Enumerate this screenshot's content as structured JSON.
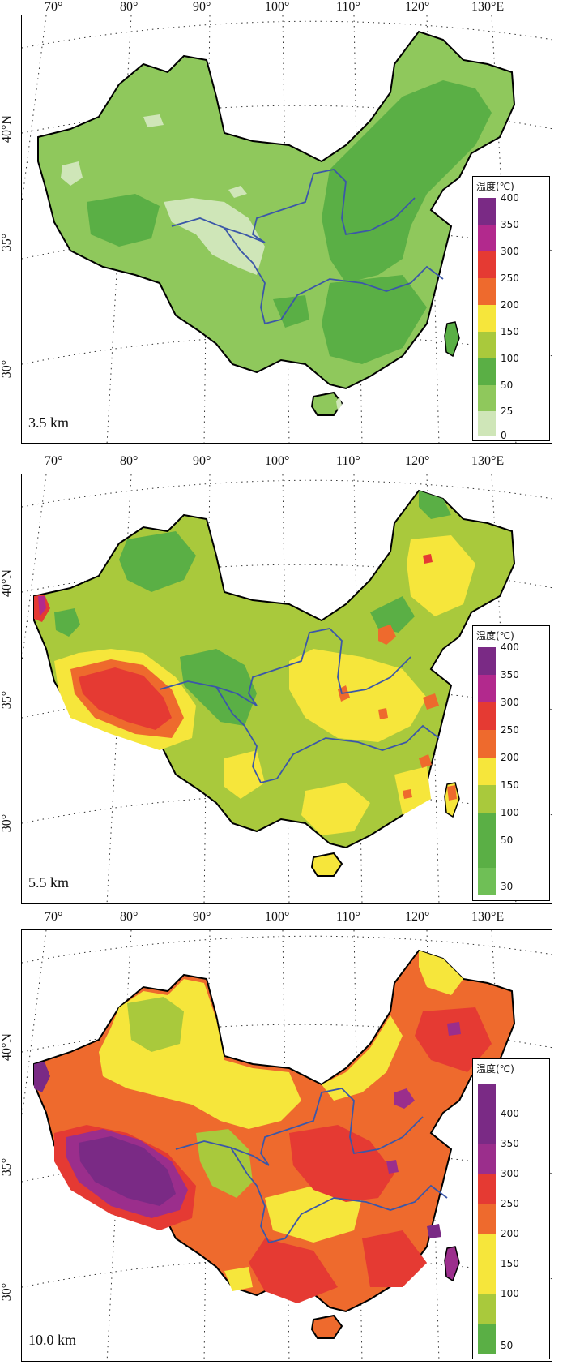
{
  "lon_labels": [
    "70°",
    "80°",
    "90°",
    "100°",
    "110°",
    "120°",
    "130°E"
  ],
  "lat_labels": [
    "40°N",
    "35°",
    "30°"
  ],
  "legend_title": "温度(℃)",
  "colors": {
    "c0": "#cfe6b8",
    "c25": "#8fc85c",
    "c50": "#5aaf45",
    "c100": "#a9c93c",
    "c150": "#f6e63b",
    "c200": "#ee6a2d",
    "c250": "#e53a33",
    "c300": "#b2298d",
    "c350": "#9b2e8c",
    "c400": "#7a2a85",
    "river": "#3b57a8",
    "border": "#000000"
  },
  "panels": [
    {
      "depth": "3.5 km",
      "legend_ticks": [
        "400",
        "350",
        "300",
        "250",
        "200",
        "150",
        "100",
        "50",
        "25",
        "0"
      ]
    },
    {
      "depth": "5.5 km",
      "legend_ticks": [
        "400",
        "350",
        "300",
        "250",
        "200",
        "150",
        "100",
        "50",
        "30"
      ]
    },
    {
      "depth": "10.0 km",
      "legend_ticks": [
        "400",
        "350",
        "300",
        "250",
        "200",
        "150",
        "100",
        "50"
      ]
    }
  ]
}
